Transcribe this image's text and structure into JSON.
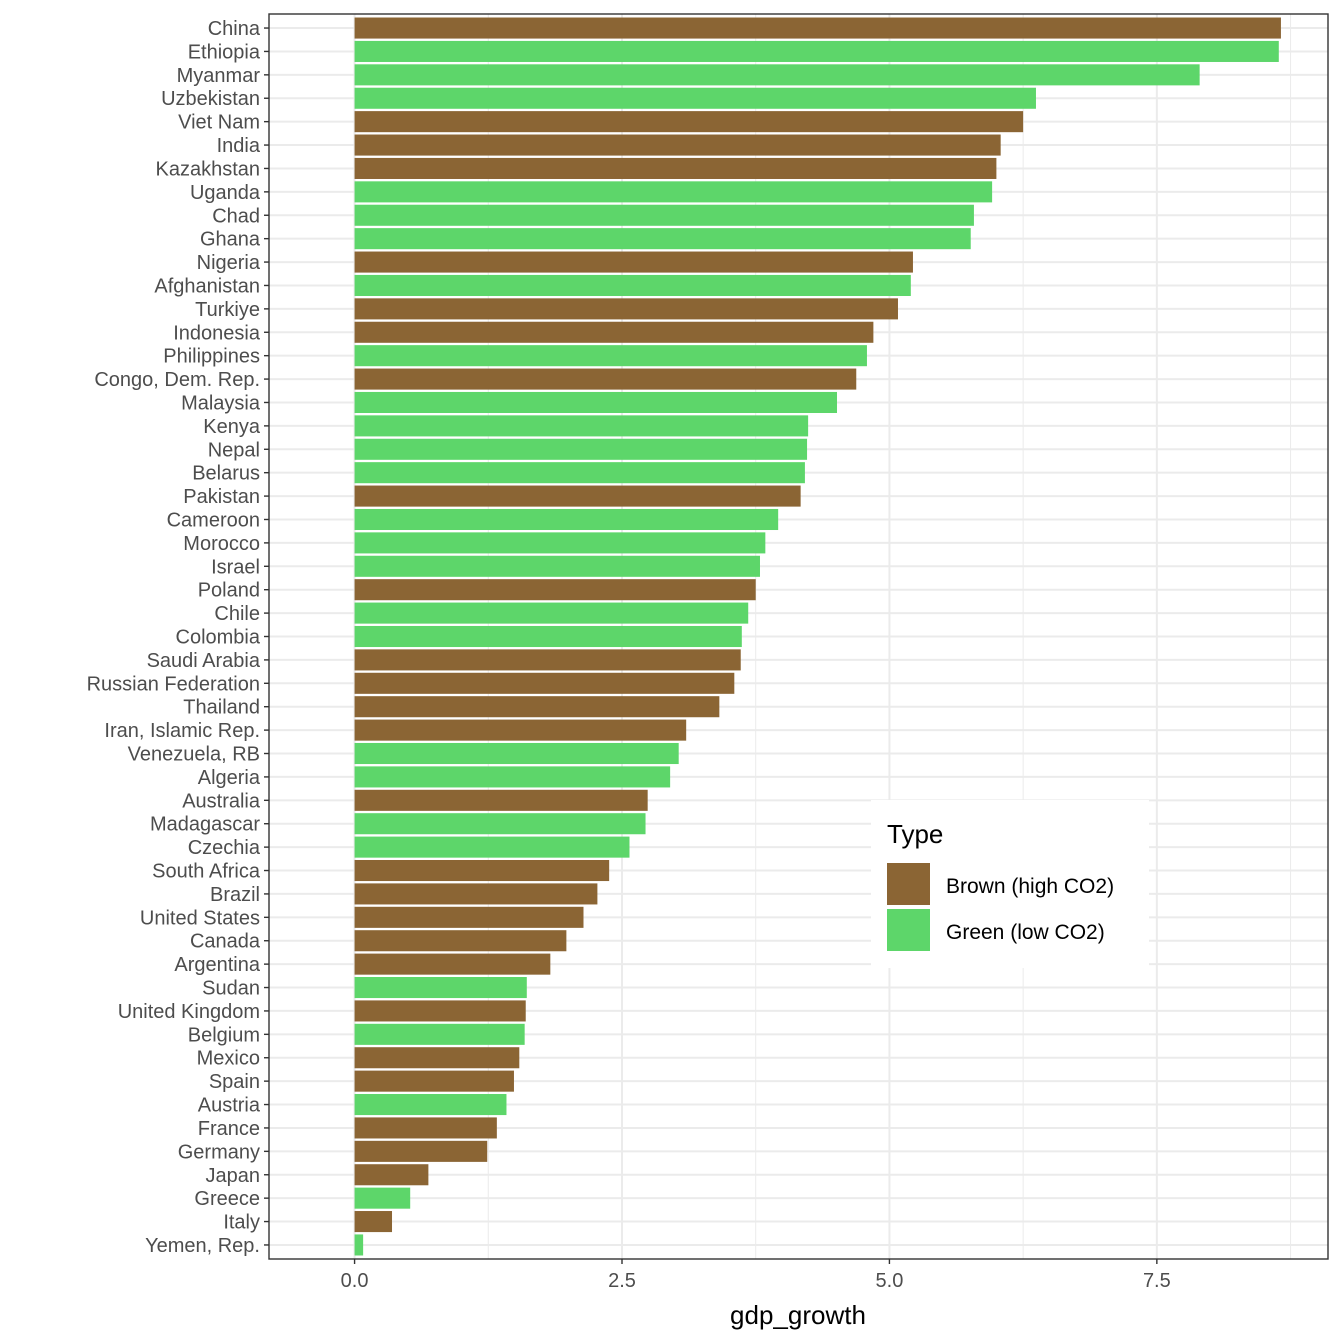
{
  "chart_data": {
    "type": "bar",
    "orientation": "horizontal",
    "xlabel": "gdp_growth",
    "ylabel": "",
    "xlim": [
      -0.8,
      9.1
    ],
    "xticks": [
      0.0,
      2.5,
      5.0,
      7.5
    ],
    "xtick_labels": [
      "0.0",
      "2.5",
      "5.0",
      "7.5"
    ],
    "grid": true,
    "legend": {
      "title": "Type",
      "placement": "inside-bottom-right",
      "entries": [
        {
          "key": "brown",
          "label": "Brown (high CO2)",
          "color": "#8b6534"
        },
        {
          "key": "green",
          "label": "Green (low CO2)",
          "color": "#5dd66a"
        }
      ]
    },
    "bars": [
      {
        "category": "China",
        "value": 8.66,
        "type": "brown"
      },
      {
        "category": "Ethiopia",
        "value": 8.64,
        "type": "green"
      },
      {
        "category": "Myanmar",
        "value": 7.9,
        "type": "green"
      },
      {
        "category": "Uzbekistan",
        "value": 6.37,
        "type": "green"
      },
      {
        "category": "Viet Nam",
        "value": 6.25,
        "type": "brown"
      },
      {
        "category": "India",
        "value": 6.04,
        "type": "brown"
      },
      {
        "category": "Kazakhstan",
        "value": 6.0,
        "type": "brown"
      },
      {
        "category": "Uganda",
        "value": 5.96,
        "type": "green"
      },
      {
        "category": "Chad",
        "value": 5.79,
        "type": "green"
      },
      {
        "category": "Ghana",
        "value": 5.76,
        "type": "green"
      },
      {
        "category": "Nigeria",
        "value": 5.22,
        "type": "brown"
      },
      {
        "category": "Afghanistan",
        "value": 5.2,
        "type": "green"
      },
      {
        "category": "Turkiye",
        "value": 5.08,
        "type": "brown"
      },
      {
        "category": "Indonesia",
        "value": 4.85,
        "type": "brown"
      },
      {
        "category": "Philippines",
        "value": 4.79,
        "type": "green"
      },
      {
        "category": "Congo, Dem. Rep.",
        "value": 4.69,
        "type": "brown"
      },
      {
        "category": "Malaysia",
        "value": 4.51,
        "type": "green"
      },
      {
        "category": "Kenya",
        "value": 4.24,
        "type": "green"
      },
      {
        "category": "Nepal",
        "value": 4.23,
        "type": "green"
      },
      {
        "category": "Belarus",
        "value": 4.21,
        "type": "green"
      },
      {
        "category": "Pakistan",
        "value": 4.17,
        "type": "brown"
      },
      {
        "category": "Cameroon",
        "value": 3.96,
        "type": "green"
      },
      {
        "category": "Morocco",
        "value": 3.84,
        "type": "green"
      },
      {
        "category": "Israel",
        "value": 3.79,
        "type": "green"
      },
      {
        "category": "Poland",
        "value": 3.75,
        "type": "brown"
      },
      {
        "category": "Chile",
        "value": 3.68,
        "type": "green"
      },
      {
        "category": "Colombia",
        "value": 3.62,
        "type": "green"
      },
      {
        "category": "Saudi Arabia",
        "value": 3.61,
        "type": "brown"
      },
      {
        "category": "Russian Federation",
        "value": 3.55,
        "type": "brown"
      },
      {
        "category": "Thailand",
        "value": 3.41,
        "type": "brown"
      },
      {
        "category": "Iran, Islamic Rep.",
        "value": 3.1,
        "type": "brown"
      },
      {
        "category": "Venezuela, RB",
        "value": 3.03,
        "type": "green"
      },
      {
        "category": "Algeria",
        "value": 2.95,
        "type": "green"
      },
      {
        "category": "Australia",
        "value": 2.74,
        "type": "brown"
      },
      {
        "category": "Madagascar",
        "value": 2.72,
        "type": "green"
      },
      {
        "category": "Czechia",
        "value": 2.57,
        "type": "green"
      },
      {
        "category": "South Africa",
        "value": 2.38,
        "type": "brown"
      },
      {
        "category": "Brazil",
        "value": 2.27,
        "type": "brown"
      },
      {
        "category": "United States",
        "value": 2.14,
        "type": "brown"
      },
      {
        "category": "Canada",
        "value": 1.98,
        "type": "brown"
      },
      {
        "category": "Argentina",
        "value": 1.83,
        "type": "brown"
      },
      {
        "category": "Sudan",
        "value": 1.61,
        "type": "green"
      },
      {
        "category": "United Kingdom",
        "value": 1.6,
        "type": "brown"
      },
      {
        "category": "Belgium",
        "value": 1.59,
        "type": "green"
      },
      {
        "category": "Mexico",
        "value": 1.54,
        "type": "brown"
      },
      {
        "category": "Spain",
        "value": 1.49,
        "type": "brown"
      },
      {
        "category": "Austria",
        "value": 1.42,
        "type": "green"
      },
      {
        "category": "France",
        "value": 1.33,
        "type": "brown"
      },
      {
        "category": "Germany",
        "value": 1.24,
        "type": "brown"
      },
      {
        "category": "Japan",
        "value": 0.69,
        "type": "brown"
      },
      {
        "category": "Greece",
        "value": 0.52,
        "type": "green"
      },
      {
        "category": "Italy",
        "value": 0.35,
        "type": "brown"
      },
      {
        "category": "Yemen, Rep.",
        "value": 0.08,
        "type": "green"
      }
    ]
  }
}
